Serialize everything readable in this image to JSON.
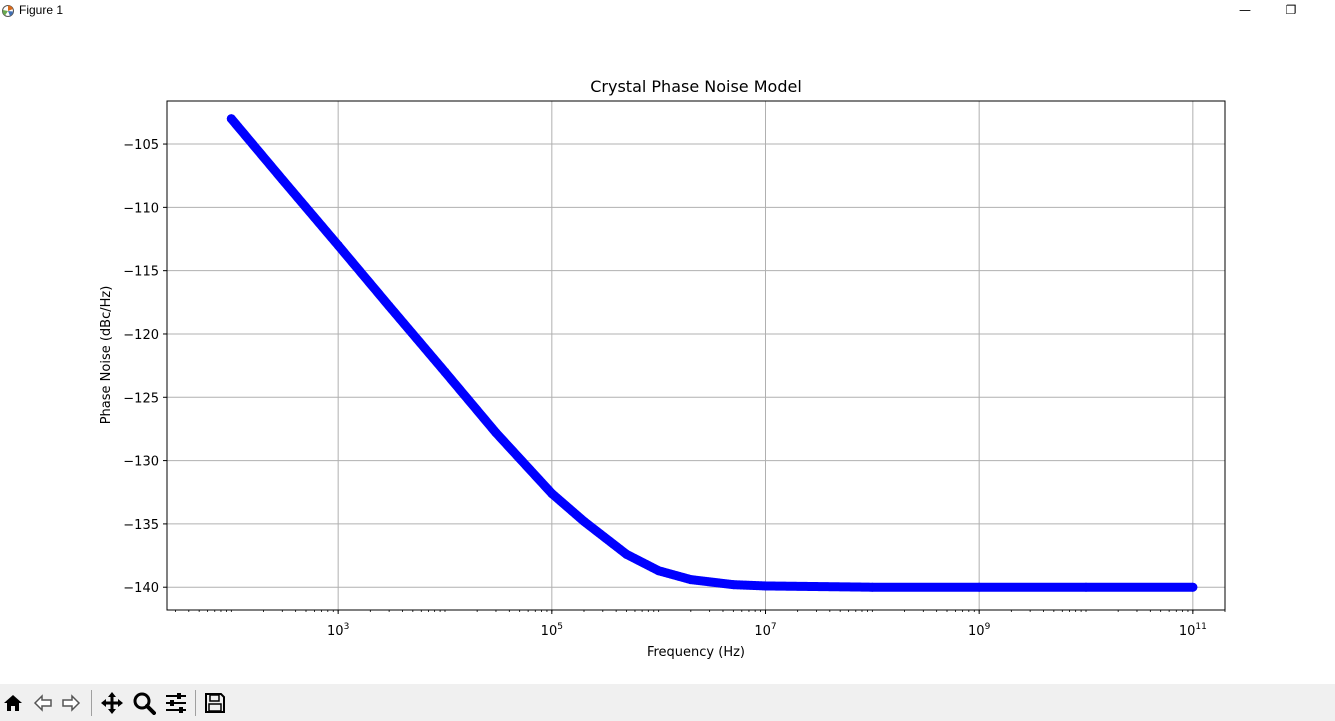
{
  "window": {
    "title": "Figure 1",
    "minimize_glyph": "—",
    "restore_glyph": "❐",
    "close_glyph": "✕"
  },
  "toolbar": {
    "items": [
      "home-icon",
      "back-icon",
      "forward-icon",
      "pan-icon",
      "zoom-icon",
      "configure-subplots-icon",
      "save-icon"
    ]
  },
  "chart_data": {
    "type": "line",
    "title": "Crystal Phase Noise Model",
    "xlabel": "Frequency (Hz)",
    "ylabel": "Phase Noise (dBc/Hz)",
    "xscale": "log",
    "xlim": [
      25,
      200000000000
    ],
    "ylim": [
      -141.8,
      -101.6
    ],
    "grid": true,
    "xticks": [
      {
        "value": 1000,
        "label": "10^3"
      },
      {
        "value": 100000,
        "label": "10^5"
      },
      {
        "value": 10000000,
        "label": "10^7"
      },
      {
        "value": 1000000000,
        "label": "10^9"
      },
      {
        "value": 100000000000,
        "label": "10^11"
      }
    ],
    "yticks": [
      -105,
      -110,
      -115,
      -120,
      -125,
      -130,
      -135,
      -140
    ],
    "ytick_labels": [
      "−105",
      "−110",
      "−115",
      "−120",
      "−125",
      "−130",
      "−135",
      "−140"
    ],
    "series": [
      {
        "color": "#0000ff",
        "marker": "circle",
        "x": [
          100,
          300,
          1000,
          3000,
          10000,
          30000,
          100000,
          200000,
          500000,
          1000000,
          2000000,
          5000000,
          10000000,
          100000000,
          1000000000,
          10000000000,
          100000000000
        ],
        "y": [
          -103.0,
          -107.8,
          -113.0,
          -117.8,
          -123.0,
          -127.8,
          -132.6,
          -134.8,
          -137.4,
          -138.7,
          -139.4,
          -139.8,
          -139.9,
          -140.0,
          -140.0,
          -140.0,
          -140.0
        ]
      }
    ]
  }
}
